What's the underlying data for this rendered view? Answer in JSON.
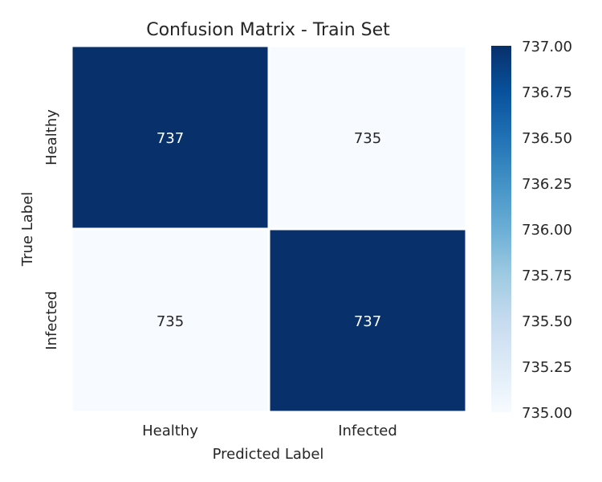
{
  "chart_data": {
    "type": "heatmap",
    "title": "Confusion Matrix - Train Set",
    "xlabel": "Predicted Label",
    "ylabel": "True Label",
    "x_categories": [
      "Healthy",
      "Infected"
    ],
    "y_categories": [
      "Healthy",
      "Infected"
    ],
    "values": [
      [
        737,
        735
      ],
      [
        735,
        737
      ]
    ],
    "cell_labels": [
      [
        "737",
        "735"
      ],
      [
        "735",
        "737"
      ]
    ],
    "colormap": "Blues",
    "colorbar": {
      "range": [
        735.0,
        737.0
      ],
      "ticks": [
        "735.00",
        "735.25",
        "735.50",
        "735.75",
        "736.00",
        "736.25",
        "736.50",
        "736.75",
        "737.00"
      ]
    },
    "colors": {
      "low": "#f7fbff",
      "high": "#08306b",
      "grid_line": "#ffffff"
    }
  }
}
